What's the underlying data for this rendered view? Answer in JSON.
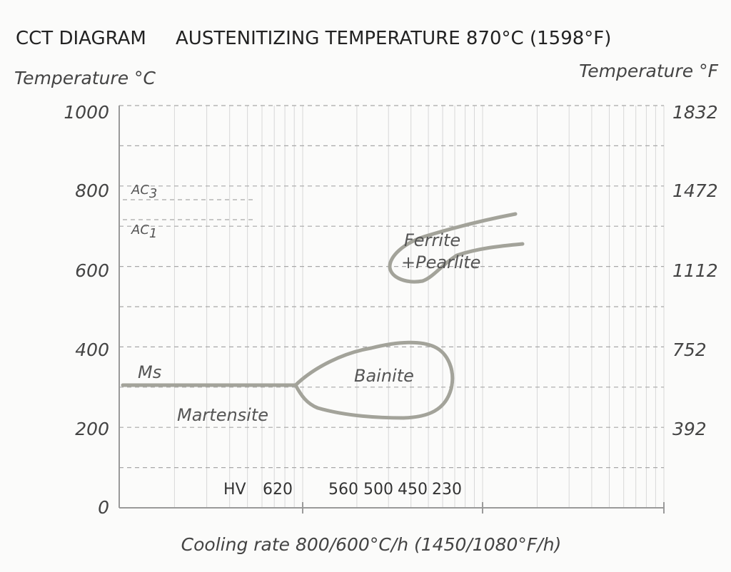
{
  "chart_data": {
    "type": "line",
    "title_left": "CCT DIAGRAM",
    "title_right": "AUSTENITIZING TEMPERATURE 870°C (1598°F)",
    "ylabel_left": "Temperature °C",
    "ylabel_right": "Temperature °F",
    "xlabel": "Cooling rate 800/600°C/h (1450/1080°F/h)",
    "ylim": [
      0,
      1000
    ],
    "y_ticks_left": [
      "1000",
      "800",
      "600",
      "400",
      "200",
      "0"
    ],
    "y_ticks_right": [
      "1832",
      "1472",
      "1112",
      "752",
      "392"
    ],
    "ac3": {
      "label": "AC",
      "sub": "3",
      "temp_c": 780
    },
    "ac1": {
      "label": "AC",
      "sub": "1",
      "temp_c": 730
    },
    "ms": {
      "label": "Ms",
      "temp_c": 320
    },
    "regions": {
      "martensite": "Martensite",
      "bainite": "Bainite",
      "ferrite_line1": "Ferrite",
      "ferrite_line2": "+Pearlite"
    },
    "hardness": {
      "label": "HV",
      "values": [
        "620",
        "560",
        "500",
        "450",
        "230"
      ]
    }
  }
}
